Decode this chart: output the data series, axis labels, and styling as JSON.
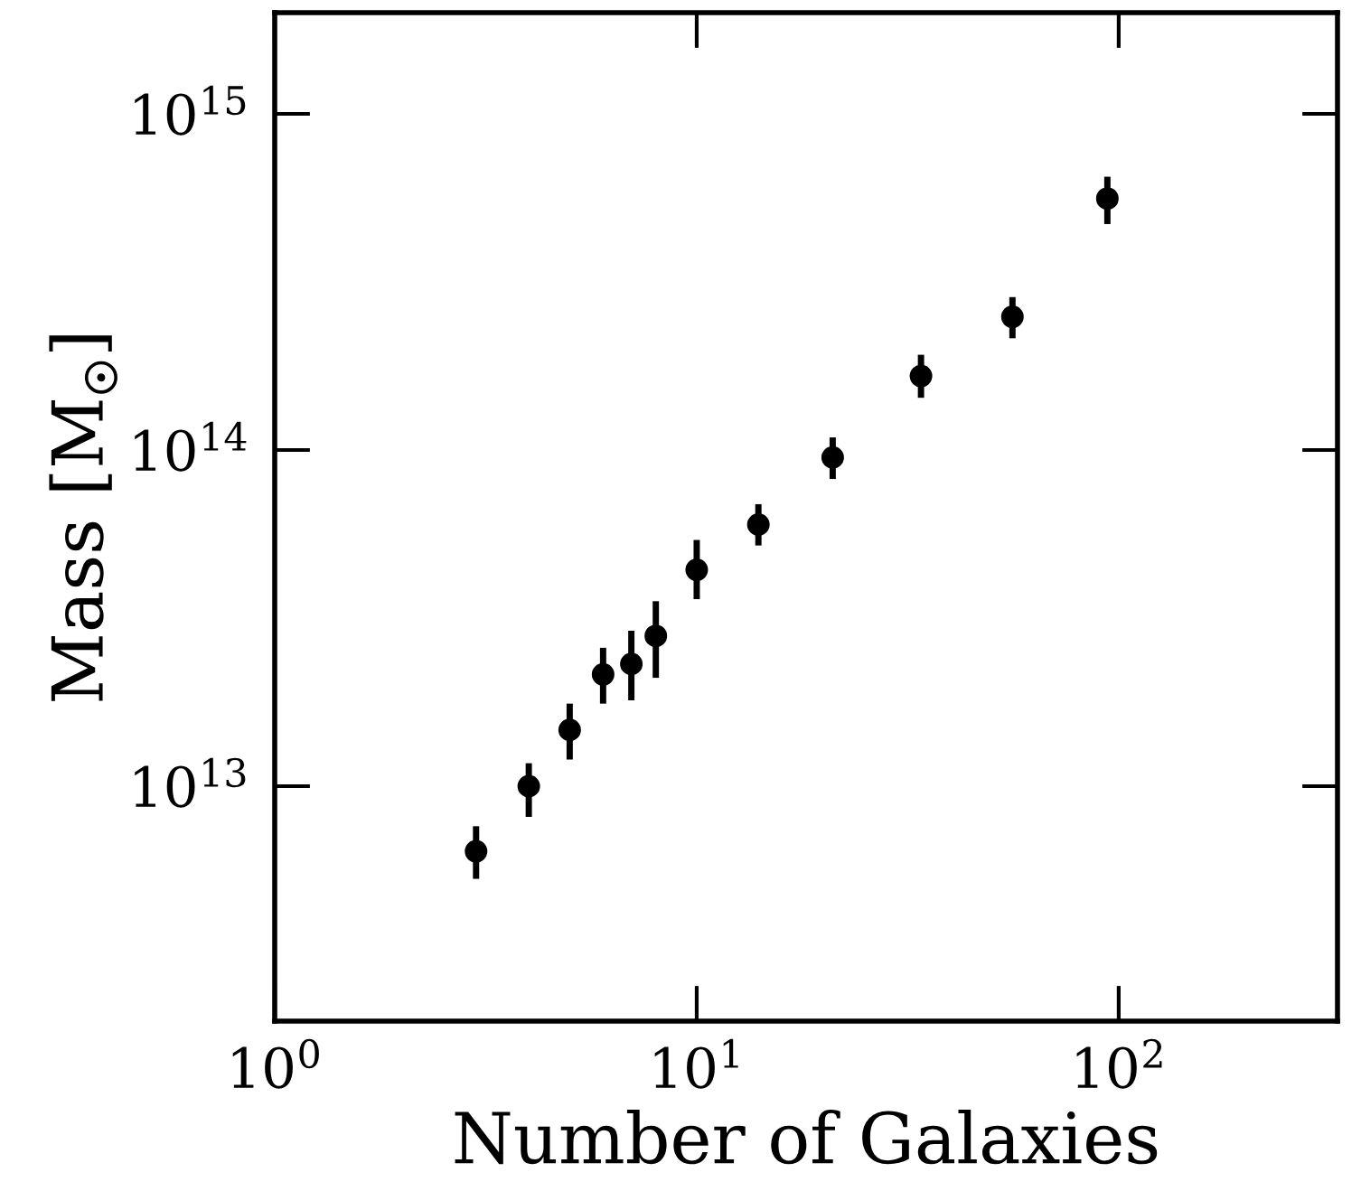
{
  "chart_data": {
    "type": "scatter",
    "xlabel": "Number of Galaxies",
    "ylabel": "Mass [M$_{☉}$]",
    "log": "xy",
    "marker": "circle",
    "grid": false,
    "legend": false,
    "x": [
      3,
      4,
      5,
      6,
      7,
      8,
      10,
      14,
      21,
      34,
      56,
      94
    ],
    "values": [
      6400000000000.0,
      10000000000000.0,
      14700000000000.0,
      21500000000000.0,
      23100000000000.0,
      28000000000000.0,
      44000000000000.0,
      60000000000000.0,
      95000000000000.0,
      166000000000000.0,
      249000000000000.0,
      560000000000000.0
    ],
    "errors": [
      [
        5300000000000.0,
        7600000000000.0
      ],
      [
        8100000000000.0,
        11700000000000.0
      ],
      [
        12000000000000.0,
        17600000000000.0
      ],
      [
        17600000000000.0,
        25800000000000.0
      ],
      [
        18000000000000.0,
        29000000000000.0
      ],
      [
        21000000000000.0,
        35500000000000.0
      ],
      [
        36000000000000.0,
        54000000000000.0
      ],
      [
        52000000000000.0,
        69000000000000.0
      ],
      [
        82000000000000.0,
        109000000000000.0
      ],
      [
        143000000000000.0,
        192000000000000.0
      ],
      [
        215000000000000.0,
        285000000000000.0
      ],
      [
        470000000000000.0,
        650000000000000.0
      ]
    ],
    "color": "#000000",
    "xlim": [
      1,
      330
    ],
    "ylim": [
      2000000000000.0,
      2000000000000000.0
    ],
    "xticks": [
      {
        "value": 1,
        "label": "10$^{0}$"
      },
      {
        "value": 10,
        "label": "10$^{1}$"
      },
      {
        "value": 100,
        "label": "10$^{2}$"
      }
    ],
    "yticks": [
      {
        "value": 10000000000000.0,
        "label": "10$^{13}$"
      },
      {
        "value": 100000000000000.0,
        "label": "10$^{14}$"
      },
      {
        "value": 1000000000000000.0,
        "label": "10$^{15}$"
      }
    ]
  }
}
